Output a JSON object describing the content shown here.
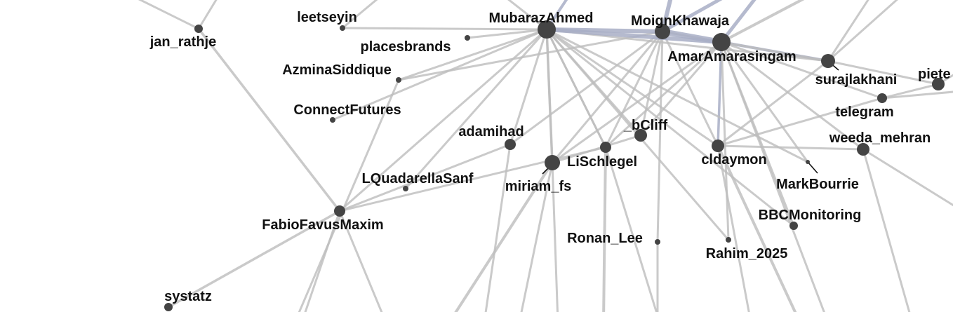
{
  "graph": {
    "edge_color_default": "#bdbdbd",
    "edge_color_strong": "#a8aec6",
    "node_color": "#444444",
    "label_color": "#111111",
    "background": "#ffffff",
    "nodes": [
      {
        "id": "n_jan",
        "label": "jan_rathje"
      },
      {
        "id": "n_leet",
        "label": "leetseyin"
      },
      {
        "id": "n_mubaraz",
        "label": "MubarazAhmed"
      },
      {
        "id": "n_moign",
        "label": "MoignKhawaja"
      },
      {
        "id": "n_amar",
        "label": "AmarAmarasingam"
      },
      {
        "id": "n_places",
        "label": "placesbrands"
      },
      {
        "id": "n_azmina",
        "label": "AzminaSiddique"
      },
      {
        "id": "n_suraj",
        "label": "surajlakhani"
      },
      {
        "id": "n_piete",
        "label": "piete"
      },
      {
        "id": "n_telegram",
        "label": "telegram"
      },
      {
        "id": "n_connect",
        "label": "ConnectFutures"
      },
      {
        "id": "n_adamihad",
        "label": "adamihad"
      },
      {
        "id": "n_bcliff",
        "label": "_bCliff"
      },
      {
        "id": "n_weeda",
        "label": "weeda_mehran"
      },
      {
        "id": "n_lischlegel",
        "label": "LiSchlegel"
      },
      {
        "id": "n_cldaymon",
        "label": "cldaymon"
      },
      {
        "id": "n_miriam",
        "label": "miriam_fs"
      },
      {
        "id": "n_lquad",
        "label": "LQuadarellaSanf"
      },
      {
        "id": "n_markb",
        "label": "MarkBourrie"
      },
      {
        "id": "n_fabio",
        "label": "FabioFavusMaxim"
      },
      {
        "id": "n_bbc",
        "label": "BBCMonitoring"
      },
      {
        "id": "n_ronan",
        "label": "Ronan_Lee"
      },
      {
        "id": "n_rahim",
        "label": "Rahim_2025"
      },
      {
        "id": "n_systatz",
        "label": "systatz"
      }
    ]
  }
}
